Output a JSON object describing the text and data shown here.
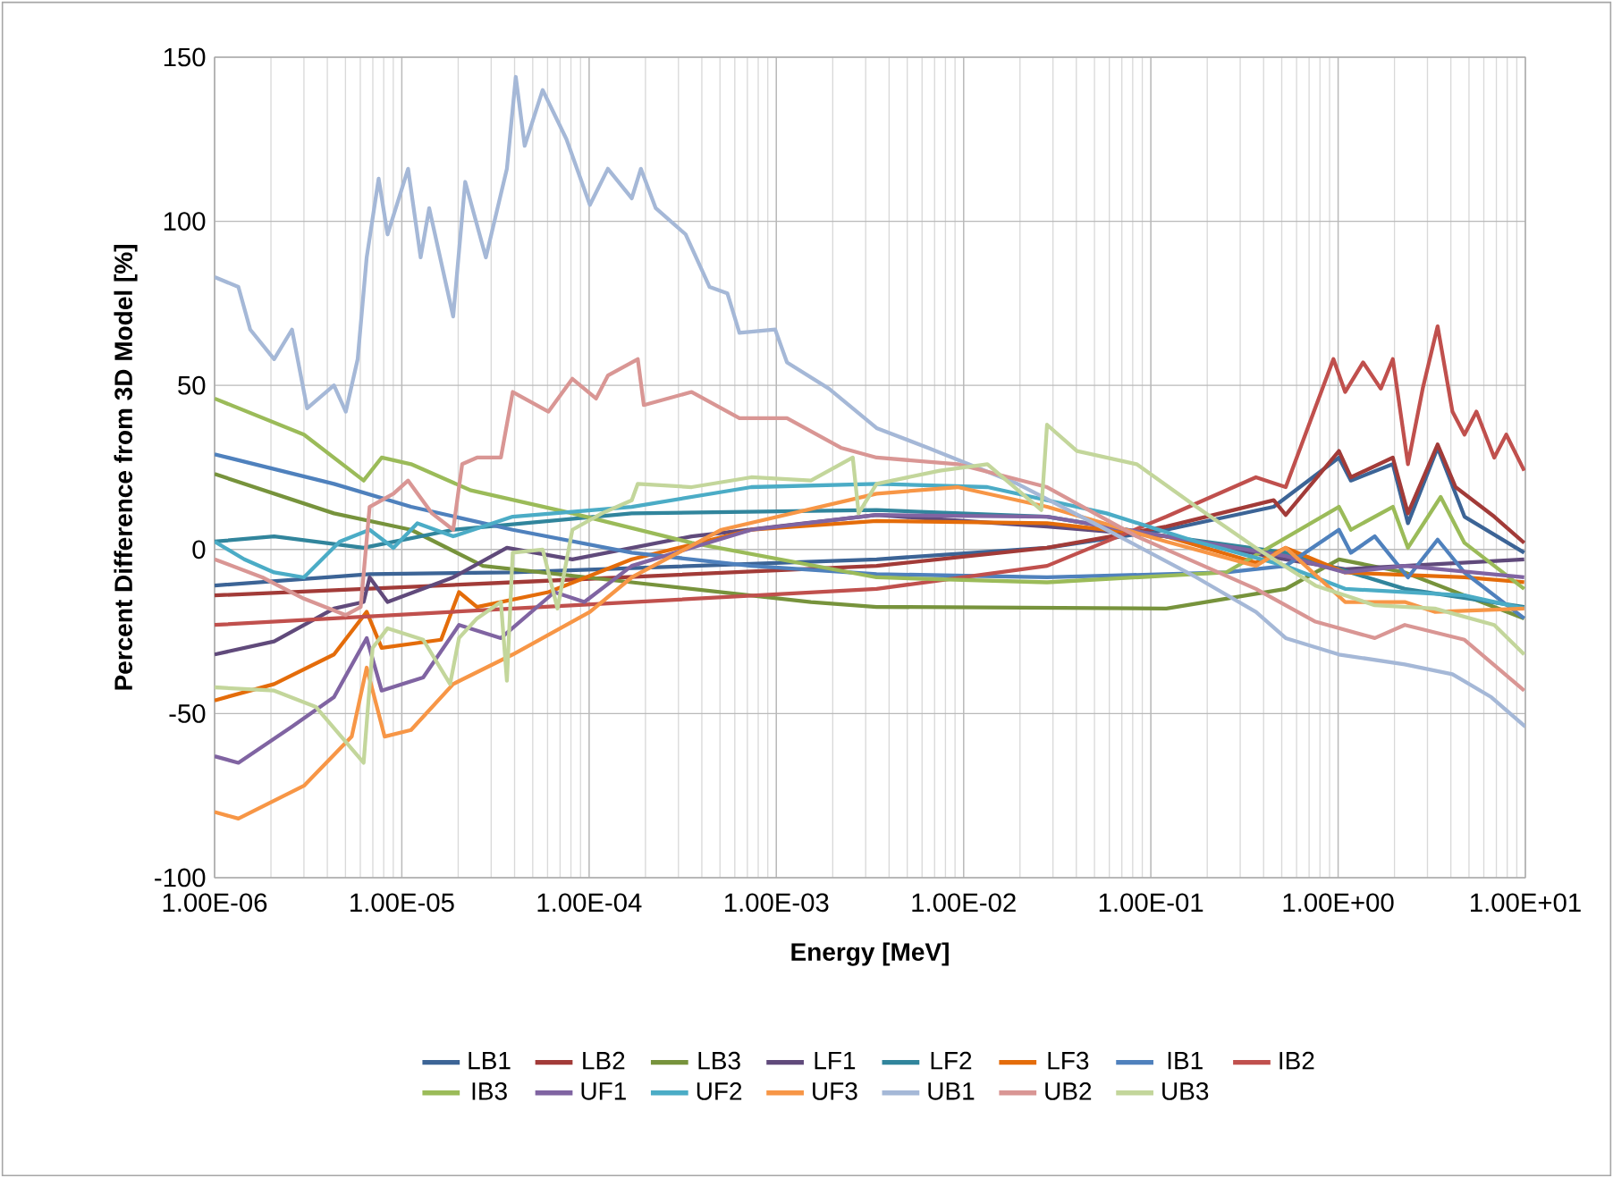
{
  "chart_data": {
    "type": "line",
    "xlabel": "Energy [MeV]",
    "ylabel": "Percent Difference from 3D Model [%]",
    "log": "x",
    "grid": true,
    "legend": "bottom",
    "xlim": [
      1e-06,
      10
    ],
    "ylim": [
      -100,
      150
    ],
    "xticks": [
      {
        "value": 1e-06,
        "label": "1.00E-06"
      },
      {
        "value": 1e-05,
        "label": "1.00E-05"
      },
      {
        "value": 0.0001,
        "label": "1.00E-04"
      },
      {
        "value": 0.001,
        "label": "1.00E-03"
      },
      {
        "value": 0.01,
        "label": "1.00E-02"
      },
      {
        "value": 0.1,
        "label": "1.00E-01"
      },
      {
        "value": 1,
        "label": "1.00E+00"
      },
      {
        "value": 10,
        "label": "1.00E+01"
      }
    ],
    "yticks": [
      -100,
      -50,
      0,
      50,
      100,
      150
    ],
    "series": [
      {
        "name": "LB1",
        "color": "#3c6496",
        "x": [
          1e-06,
          6.73e-06,
          3.91e-05,
          0.00343,
          0.0279,
          0.121,
          0.453,
          1.01,
          1.17,
          1.96,
          2.36,
          3.4,
          4.73,
          9.86
        ],
        "values": [
          -11,
          -7.5,
          -7,
          -3,
          0.5,
          6,
          13,
          28,
          21,
          26,
          8,
          31,
          10,
          -1
        ]
      },
      {
        "name": "LB2",
        "color": "#a23b38",
        "x": [
          1e-06,
          3.91e-05,
          0.00343,
          0.0279,
          0.121,
          0.453,
          0.525,
          1.01,
          1.17,
          1.96,
          2.36,
          3.4,
          4.24,
          6.82,
          9.86
        ],
        "values": [
          -14,
          -10,
          -5,
          0.5,
          7,
          15,
          10.5,
          30,
          22,
          28,
          11,
          32,
          19,
          10,
          2
        ]
      },
      {
        "name": "LB3",
        "color": "#77933c",
        "x": [
          1e-06,
          4.34e-06,
          1.12e-05,
          2.71e-05,
          0.000169,
          0.00153,
          0.00343,
          0.121,
          0.525,
          1.01,
          2.27,
          9.86
        ],
        "values": [
          23,
          11,
          6,
          -5,
          -10,
          -16,
          -17.5,
          -18,
          -12,
          -3,
          -7,
          -21
        ]
      },
      {
        "name": "LF1",
        "color": "#604a7b",
        "x": [
          1e-06,
          2.08e-06,
          4.34e-06,
          6.25e-06,
          6.73e-06,
          8.39e-06,
          1.88e-05,
          3.64e-05,
          8.14e-05,
          0.000353,
          0.00343,
          0.0279,
          0.121,
          0.525,
          1.09,
          2.27,
          9.86
        ],
        "values": [
          -32,
          -28,
          -18,
          -16,
          -8.5,
          -16,
          -8.5,
          0.5,
          -3,
          4,
          10.5,
          7,
          4,
          -3,
          -6,
          -5,
          -3
        ]
      },
      {
        "name": "LF2",
        "color": "#31859c",
        "x": [
          1e-06,
          2.08e-06,
          6.25e-06,
          1.88e-05,
          0.000169,
          0.00343,
          0.0279,
          0.121,
          0.525,
          2.27,
          9.86
        ],
        "values": [
          2.4,
          4,
          0.5,
          6,
          11,
          12,
          10,
          4,
          -1,
          -12,
          -17.5
        ]
      },
      {
        "name": "LF3",
        "color": "#e46c0a",
        "x": [
          1e-06,
          2.08e-06,
          4.34e-06,
          6.49e-06,
          7.8e-06,
          1.62e-05,
          2.02e-05,
          2.52e-05,
          6.07e-05,
          0.000169,
          0.000735,
          0.00343,
          0.0279,
          0.121,
          0.364,
          0.525,
          1.09,
          4.73,
          9.86
        ],
        "values": [
          -46,
          -41,
          -32,
          -19,
          -30,
          -27.5,
          -13,
          -17.5,
          -13,
          -3,
          6,
          8.7,
          8,
          4,
          -4,
          0.5,
          -7,
          -8.5,
          -10
        ]
      },
      {
        "name": "IB1",
        "color": "#4f81bd",
        "x": [
          1e-06,
          4.34e-06,
          1.12e-05,
          3.91e-05,
          0.000169,
          0.000735,
          0.00343,
          0.0279,
          0.252,
          0.525,
          1.01,
          1.17,
          1.57,
          2.36,
          3.4,
          4.73,
          9.86
        ],
        "values": [
          29,
          20,
          13,
          6,
          -1,
          -5,
          -7.5,
          -8.5,
          -7,
          -5,
          6,
          -1,
          4,
          -8.5,
          3,
          -7,
          -21
        ]
      },
      {
        "name": "IB2",
        "color": "#c0504d",
        "x": [
          1e-06,
          3.91e-05,
          0.00343,
          0.0279,
          0.121,
          0.364,
          0.525,
          0.944,
          1.09,
          1.36,
          1.69,
          1.96,
          2.36,
          2.83,
          3.4,
          4.08,
          4.73,
          5.48,
          6.82,
          7.91,
          9.86
        ],
        "values": [
          -23,
          -18,
          -12,
          -5,
          10,
          22,
          19,
          58,
          48,
          57,
          49,
          58,
          26,
          49,
          68,
          42,
          35,
          42,
          28,
          35,
          24
        ]
      },
      {
        "name": "IB3",
        "color": "#9bbb59",
        "x": [
          1e-06,
          3e-06,
          6.25e-06,
          7.8e-06,
          1.12e-05,
          2.34e-05,
          8.14e-05,
          0.000353,
          0.00343,
          0.0279,
          0.252,
          1.01,
          1.17,
          1.96,
          2.36,
          3.53,
          4.73,
          9.86
        ],
        "values": [
          46,
          35,
          21,
          28,
          26,
          18,
          11,
          2,
          -8.5,
          -10,
          -7,
          13,
          6,
          13,
          0.5,
          16,
          2,
          -12
        ]
      },
      {
        "name": "UF1",
        "color": "#8064a2",
        "x": [
          1e-06,
          1.34e-06,
          2.59e-06,
          4.34e-06,
          6.49e-06,
          7.8e-06,
          1.3e-05,
          2.02e-05,
          3.38e-05,
          6.53e-05,
          9.44e-05,
          0.000169,
          0.000735,
          0.00343,
          0.0279,
          0.121,
          0.525,
          1.09,
          2.27,
          9.86
        ],
        "values": [
          -63,
          -65,
          -54,
          -45,
          -27,
          -43,
          -39,
          -23,
          -27,
          -13,
          -16,
          -5,
          6,
          10.5,
          10,
          4,
          -2,
          -7,
          -5,
          -8.5
        ]
      },
      {
        "name": "UF2",
        "color": "#4bacc6",
        "x": [
          1e-06,
          1.44e-06,
          2.08e-06,
          3e-06,
          4.66e-06,
          6.73e-06,
          9.02e-06,
          1.21e-05,
          1.88e-05,
          3.91e-05,
          0.000169,
          0.000735,
          0.00343,
          0.0134,
          0.0581,
          0.175,
          0.525,
          1.09,
          4.73,
          9.86
        ],
        "values": [
          2.4,
          -3,
          -7,
          -8.5,
          2.4,
          6,
          0.5,
          8,
          4,
          10,
          13,
          19,
          20,
          19,
          11,
          2.4,
          -5,
          -12,
          -14,
          -18
        ]
      },
      {
        "name": "UF3",
        "color": "#f79646",
        "x": [
          1e-06,
          1.34e-06,
          3e-06,
          5.4e-06,
          6.49e-06,
          8.09e-06,
          1.12e-05,
          1.88e-05,
          3.91e-05,
          0.000101,
          0.000169,
          0.000509,
          0.00343,
          0.00929,
          0.0279,
          0.121,
          0.364,
          0.525,
          1.09,
          2.27,
          3.28,
          9.86
        ],
        "values": [
          -80,
          -82,
          -72,
          -57,
          -36,
          -57,
          -55,
          -41,
          -32,
          -19,
          -8.5,
          6,
          17,
          19,
          13,
          2.4,
          -5,
          0.5,
          -16,
          -16,
          -19,
          -18
        ]
      },
      {
        "name": "UB1",
        "color": "#a5b8d7",
        "x": [
          1e-06,
          1.34e-06,
          1.55e-06,
          2.08e-06,
          2.59e-06,
          3.12e-06,
          4.34e-06,
          5.02e-06,
          5.81e-06,
          6.49e-06,
          7.52e-06,
          8.39e-06,
          1.08e-05,
          1.26e-05,
          1.4e-05,
          1.88e-05,
          2.18e-05,
          2.81e-05,
          3.64e-05,
          4.06e-05,
          4.53e-05,
          5.65e-05,
          7.57e-05,
          0.000101,
          0.000126,
          0.000169,
          0.000189,
          0.000227,
          0.000328,
          0.00044,
          0.000548,
          0.000635,
          0.000986,
          0.00114,
          0.00191,
          0.00343,
          0.00644,
          0.0194,
          0.0581,
          0.175,
          0.364,
          0.525,
          1.01,
          2.27,
          4.08,
          6.58,
          10
        ],
        "values": [
          83,
          80,
          67,
          58,
          67,
          43,
          50,
          42,
          58,
          89,
          113,
          96,
          116,
          89,
          104,
          71,
          112,
          89,
          116,
          144,
          123,
          140,
          125,
          105,
          116,
          107,
          116,
          104,
          96,
          80,
          78,
          66,
          67,
          57,
          49,
          37,
          31,
          20,
          6,
          -8.5,
          -19,
          -27,
          -32,
          -35,
          -38,
          -45,
          -54
        ]
      },
      {
        "name": "UB2",
        "color": "#d99694",
        "x": [
          1e-06,
          1.8e-06,
          3e-06,
          5.02e-06,
          6.03e-06,
          6.73e-06,
          9.02e-06,
          1.08e-05,
          1.45e-05,
          1.88e-05,
          2.1e-05,
          2.52e-05,
          3.38e-05,
          3.91e-05,
          6.07e-05,
          8.14e-05,
          0.000109,
          0.000126,
          0.000182,
          0.000196,
          0.000353,
          0.000635,
          0.00114,
          0.00221,
          0.00343,
          0.00929,
          0.0279,
          0.0839,
          0.364,
          0.757,
          1.57,
          2.27,
          4.73,
          9.86
        ],
        "values": [
          -3,
          -8.5,
          -15,
          -20,
          -17.5,
          13,
          17,
          21,
          11,
          6,
          26,
          28,
          28,
          48,
          42,
          52,
          46,
          53,
          58,
          44,
          48,
          40,
          40,
          31,
          28,
          26,
          19,
          4,
          -12,
          -22,
          -27,
          -23,
          -27.5,
          -43
        ]
      },
      {
        "name": "UB3",
        "color": "#c3d69b",
        "x": [
          1e-06,
          2.08e-06,
          3.48e-06,
          6.25e-06,
          6.98e-06,
          8.39e-06,
          1.3e-05,
          1.81e-05,
          2.02e-05,
          2.52e-05,
          3.38e-05,
          3.64e-05,
          3.91e-05,
          5.65e-05,
          6.78e-05,
          8.14e-05,
          0.000117,
          0.000169,
          0.000182,
          0.000353,
          0.000735,
          0.00153,
          0.00256,
          0.00275,
          0.00343,
          0.00746,
          0.0134,
          0.026,
          0.0279,
          0.0403,
          0.0839,
          0.175,
          0.364,
          0.757,
          1.57,
          3.28,
          6.82,
          9.86
        ],
        "values": [
          -42,
          -43,
          -48,
          -65,
          -30,
          -24,
          -27.5,
          -41,
          -27,
          -21,
          -16,
          -40,
          -1,
          0,
          -18,
          6,
          11,
          15,
          20,
          19,
          22,
          21,
          28,
          11,
          20,
          24,
          26,
          12,
          38,
          30,
          26,
          13,
          0.5,
          -11,
          -17,
          -18,
          -23,
          -32
        ]
      }
    ]
  }
}
